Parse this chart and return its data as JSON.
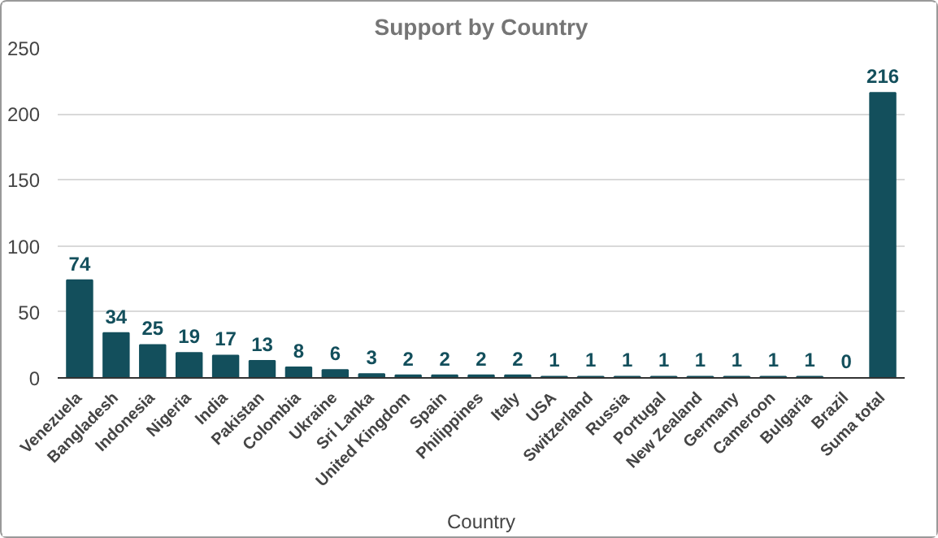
{
  "chart_data": {
    "type": "bar",
    "title": "Support by Country",
    "xlabel": "Country",
    "categories": [
      "Venezuela",
      "Bangladesh",
      "Indonesia",
      "Nigeria",
      "India",
      "Pakistan",
      "Colombia",
      "Ukraine",
      "Sri Lanka",
      "United Kingdom",
      "Spain",
      "Philippines",
      "Italy",
      "USA",
      "Switzerland",
      "Russia",
      "Portugal",
      "New Zealand",
      "Germany",
      "Cameroon",
      "Bulgaria",
      "Brazil",
      "Suma total"
    ],
    "values": [
      74,
      34,
      25,
      19,
      17,
      13,
      8,
      6,
      3,
      2,
      2,
      2,
      2,
      1,
      1,
      1,
      1,
      1,
      1,
      1,
      1,
      0,
      216
    ],
    "color": "#134f5c",
    "ylim": [
      0,
      250
    ],
    "yticks": [
      0,
      50,
      100,
      150,
      200,
      250
    ],
    "grid": "y",
    "data_labels": true
  }
}
